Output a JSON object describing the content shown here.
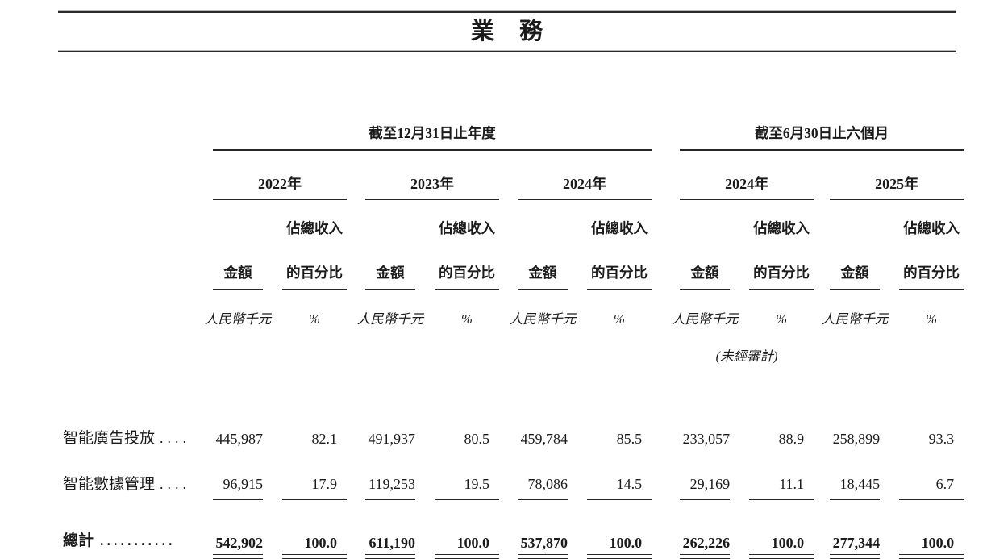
{
  "title": "業　務",
  "table": {
    "period_groups": [
      "截至12月31日止年度",
      "截至6月30日止六個月"
    ],
    "years": [
      "2022年",
      "2023年",
      "2024年",
      "2024年",
      "2025年"
    ],
    "col_headers": {
      "pct_line1": "佔總收入",
      "pct_line2": "的百分比",
      "amount": "金額",
      "amount_unit": "人民幣千元",
      "pct_unit": "%",
      "unaudited_note": "(未經審計)"
    },
    "rows": [
      {
        "label": "智能廣告投放",
        "dots": "....",
        "values": [
          "445,987",
          "82.1",
          "491,937",
          "80.5",
          "459,784",
          "85.5",
          "233,057",
          "88.9",
          "258,899",
          "93.3"
        ]
      },
      {
        "label": "智能數據管理",
        "dots": "....",
        "values": [
          "96,915",
          "17.9",
          "119,253",
          "19.5",
          "78,086",
          "14.5",
          "29,169",
          "11.1",
          "18,445",
          "6.7"
        ]
      }
    ],
    "total": {
      "label": "總計",
      "dots": "...........",
      "values": [
        "542,902",
        "100.0",
        "611,190",
        "100.0",
        "537,870",
        "100.0",
        "262,226",
        "100.0",
        "277,344",
        "100.0"
      ]
    }
  }
}
